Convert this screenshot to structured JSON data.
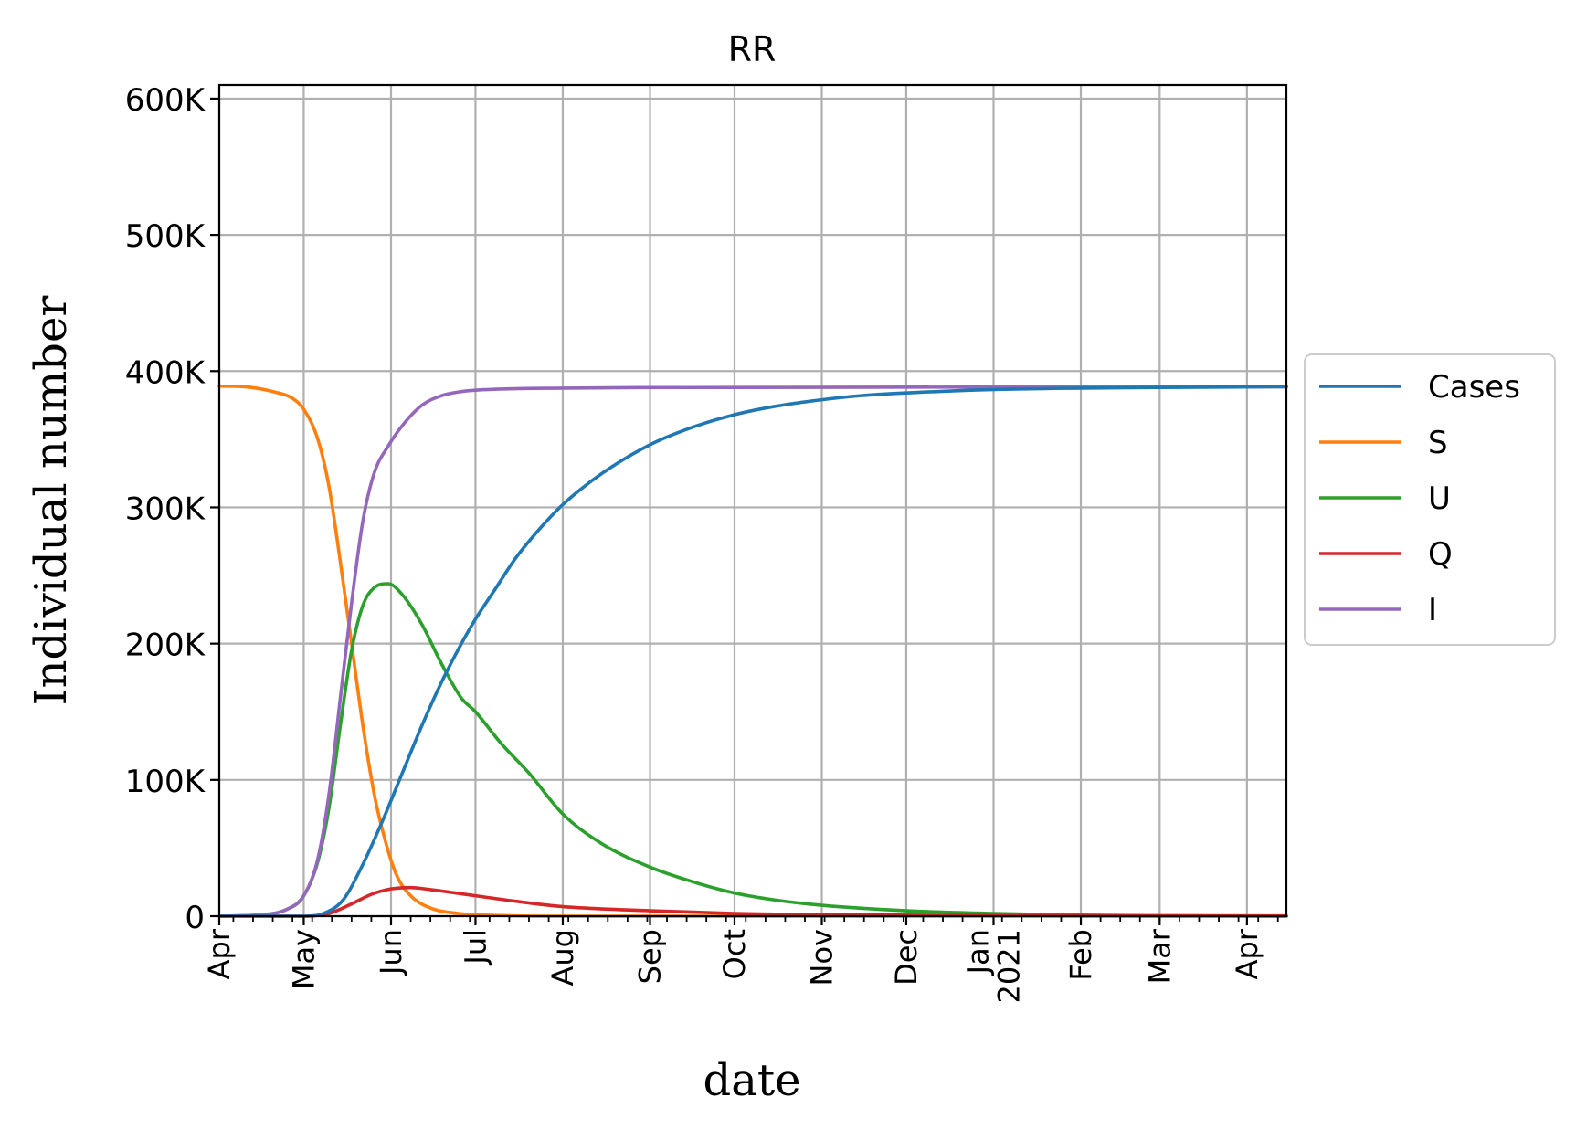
{
  "chart_data": {
    "type": "line",
    "title": "RR",
    "xlabel": "date",
    "ylabel": "Individual number",
    "x_axis": {
      "type": "date",
      "range": [
        "2020-04-01",
        "2021-04-15"
      ],
      "ticks": [
        {
          "date": "2020-04-01",
          "label": "Apr"
        },
        {
          "date": "2020-05-01",
          "label": "May"
        },
        {
          "date": "2020-06-01",
          "label": "Jun"
        },
        {
          "date": "2020-07-01",
          "label": "Jul"
        },
        {
          "date": "2020-08-01",
          "label": "Aug"
        },
        {
          "date": "2020-09-01",
          "label": "Sep"
        },
        {
          "date": "2020-10-01",
          "label": "Oct"
        },
        {
          "date": "2020-11-01",
          "label": "Nov"
        },
        {
          "date": "2020-12-01",
          "label": "Dec"
        },
        {
          "date": "2021-01-01",
          "label": "Jan\n2021"
        },
        {
          "date": "2021-02-01",
          "label": "Feb"
        },
        {
          "date": "2021-03-01",
          "label": "Mar"
        },
        {
          "date": "2021-04-01",
          "label": "Apr"
        }
      ],
      "minor_ticks": "weekly"
    },
    "y_axis": {
      "range": [
        0,
        610000
      ],
      "ticks": [
        {
          "value": 0,
          "label": "0"
        },
        {
          "value": 100000,
          "label": "100K"
        },
        {
          "value": 200000,
          "label": "200K"
        },
        {
          "value": 300000,
          "label": "300K"
        },
        {
          "value": 400000,
          "label": "400K"
        },
        {
          "value": 500000,
          "label": "500K"
        },
        {
          "value": 600000,
          "label": "600K"
        }
      ]
    },
    "grid": true,
    "legend": {
      "placement": "right, outside the axes"
    },
    "series": [
      {
        "name": "Cases",
        "color": "#1f77b4",
        "points": [
          [
            "2020-04-01",
            0
          ],
          [
            "2020-05-01",
            0
          ],
          [
            "2020-05-08",
            2000
          ],
          [
            "2020-05-15",
            12000
          ],
          [
            "2020-05-22",
            38000
          ],
          [
            "2020-05-29",
            70000
          ],
          [
            "2020-06-05",
            105000
          ],
          [
            "2020-06-12",
            140000
          ],
          [
            "2020-06-19",
            172000
          ],
          [
            "2020-06-26",
            200000
          ],
          [
            "2020-07-01",
            218000
          ],
          [
            "2020-07-08",
            240000
          ],
          [
            "2020-07-15",
            262000
          ],
          [
            "2020-07-22",
            280000
          ],
          [
            "2020-08-01",
            302000
          ],
          [
            "2020-08-15",
            325000
          ],
          [
            "2020-09-01",
            346000
          ],
          [
            "2020-09-15",
            358000
          ],
          [
            "2020-10-01",
            368000
          ],
          [
            "2020-10-15",
            374000
          ],
          [
            "2020-11-01",
            379000
          ],
          [
            "2020-11-15",
            382000
          ],
          [
            "2020-12-01",
            384000
          ],
          [
            "2021-01-01",
            386500
          ],
          [
            "2021-02-01",
            387500
          ],
          [
            "2021-03-01",
            388000
          ],
          [
            "2021-04-15",
            388500
          ]
        ]
      },
      {
        "name": "S",
        "color": "#ff7f0e",
        "points": [
          [
            "2020-04-01",
            389000
          ],
          [
            "2020-04-10",
            388500
          ],
          [
            "2020-04-20",
            385000
          ],
          [
            "2020-04-27",
            380000
          ],
          [
            "2020-05-01",
            372000
          ],
          [
            "2020-05-06",
            350000
          ],
          [
            "2020-05-10",
            315000
          ],
          [
            "2020-05-14",
            260000
          ],
          [
            "2020-05-18",
            200000
          ],
          [
            "2020-05-22",
            140000
          ],
          [
            "2020-05-26",
            90000
          ],
          [
            "2020-05-30",
            55000
          ],
          [
            "2020-06-03",
            30000
          ],
          [
            "2020-06-08",
            15000
          ],
          [
            "2020-06-15",
            6000
          ],
          [
            "2020-06-25",
            2000
          ],
          [
            "2020-07-10",
            500
          ],
          [
            "2020-08-01",
            0
          ],
          [
            "2021-04-15",
            0
          ]
        ]
      },
      {
        "name": "U",
        "color": "#2ca02c",
        "points": [
          [
            "2020-04-01",
            0
          ],
          [
            "2020-04-15",
            1000
          ],
          [
            "2020-04-25",
            5000
          ],
          [
            "2020-05-01",
            15000
          ],
          [
            "2020-05-06",
            40000
          ],
          [
            "2020-05-10",
            80000
          ],
          [
            "2020-05-14",
            140000
          ],
          [
            "2020-05-18",
            195000
          ],
          [
            "2020-05-22",
            228000
          ],
          [
            "2020-05-26",
            241000
          ],
          [
            "2020-05-31",
            244000
          ],
          [
            "2020-06-05",
            236000
          ],
          [
            "2020-06-12",
            214000
          ],
          [
            "2020-06-19",
            185000
          ],
          [
            "2020-06-26",
            160000
          ],
          [
            "2020-07-01",
            150000
          ],
          [
            "2020-07-10",
            127000
          ],
          [
            "2020-07-20",
            105000
          ],
          [
            "2020-08-01",
            75000
          ],
          [
            "2020-08-15",
            53000
          ],
          [
            "2020-09-01",
            36000
          ],
          [
            "2020-09-15",
            26000
          ],
          [
            "2020-10-01",
            17000
          ],
          [
            "2020-10-15",
            12000
          ],
          [
            "2020-11-01",
            8000
          ],
          [
            "2020-12-01",
            4000
          ],
          [
            "2021-01-01",
            2000
          ],
          [
            "2021-02-01",
            800
          ],
          [
            "2021-03-01",
            300
          ],
          [
            "2021-04-15",
            100
          ]
        ]
      },
      {
        "name": "Q",
        "color": "#d62728",
        "points": [
          [
            "2020-04-01",
            0
          ],
          [
            "2020-05-01",
            0
          ],
          [
            "2020-05-10",
            2000
          ],
          [
            "2020-05-18",
            9000
          ],
          [
            "2020-05-25",
            16000
          ],
          [
            "2020-06-01",
            20000
          ],
          [
            "2020-06-08",
            21000
          ],
          [
            "2020-06-15",
            19500
          ],
          [
            "2020-07-01",
            15000
          ],
          [
            "2020-07-15",
            11000
          ],
          [
            "2020-08-01",
            7000
          ],
          [
            "2020-09-01",
            4000
          ],
          [
            "2020-10-01",
            2000
          ],
          [
            "2020-11-01",
            1000
          ],
          [
            "2021-01-01",
            500
          ],
          [
            "2021-04-15",
            200
          ]
        ]
      },
      {
        "name": "I",
        "color": "#9467bd",
        "points": [
          [
            "2020-04-01",
            0
          ],
          [
            "2020-04-15",
            1000
          ],
          [
            "2020-04-25",
            5000
          ],
          [
            "2020-05-01",
            15000
          ],
          [
            "2020-05-06",
            42000
          ],
          [
            "2020-05-10",
            90000
          ],
          [
            "2020-05-14",
            160000
          ],
          [
            "2020-05-18",
            230000
          ],
          [
            "2020-05-22",
            290000
          ],
          [
            "2020-05-26",
            325000
          ],
          [
            "2020-05-31",
            345000
          ],
          [
            "2020-06-05",
            360000
          ],
          [
            "2020-06-12",
            375000
          ],
          [
            "2020-06-19",
            382000
          ],
          [
            "2020-06-26",
            385000
          ],
          [
            "2020-07-01",
            386000
          ],
          [
            "2020-08-01",
            387500
          ],
          [
            "2020-10-01",
            388000
          ],
          [
            "2021-04-15",
            388500
          ]
        ]
      }
    ]
  }
}
